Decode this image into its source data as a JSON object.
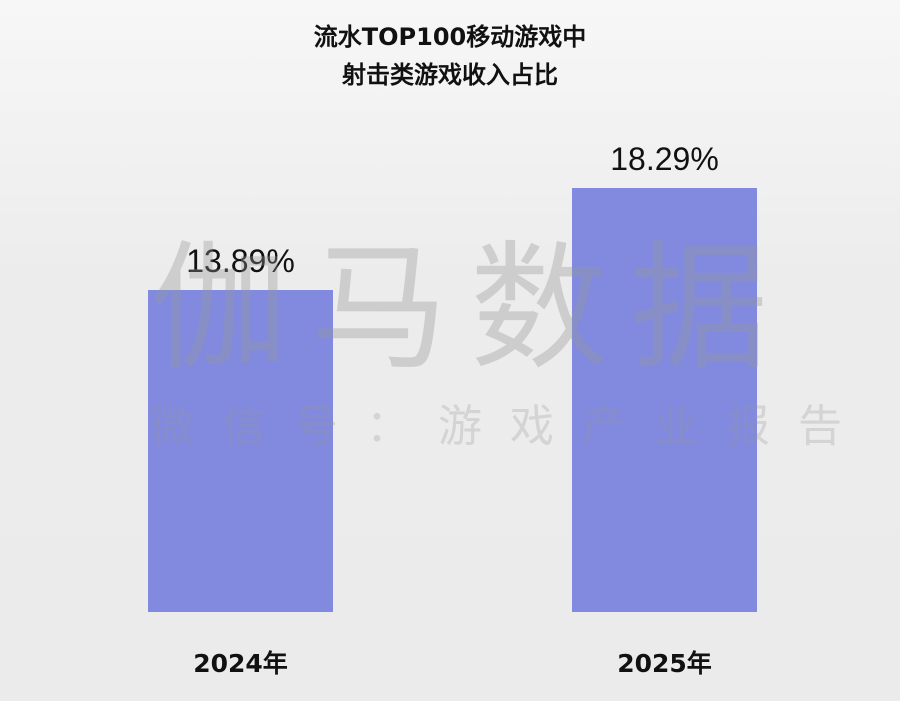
{
  "chart_data": {
    "type": "bar",
    "title": "流水TOP100移动游戏中",
    "subtitle": "射击类游戏收入占比",
    "categories": [
      "2024年",
      "2025年"
    ],
    "values": [
      13.89,
      18.29
    ],
    "value_labels": [
      "13.89%",
      "18.29%"
    ],
    "unit": "%",
    "ylim": [
      0,
      26.4
    ],
    "grid": false,
    "bar_color": "#828ae0"
  },
  "watermark": {
    "main": "伽马数据",
    "sub": "微信号：游戏产业报告"
  }
}
